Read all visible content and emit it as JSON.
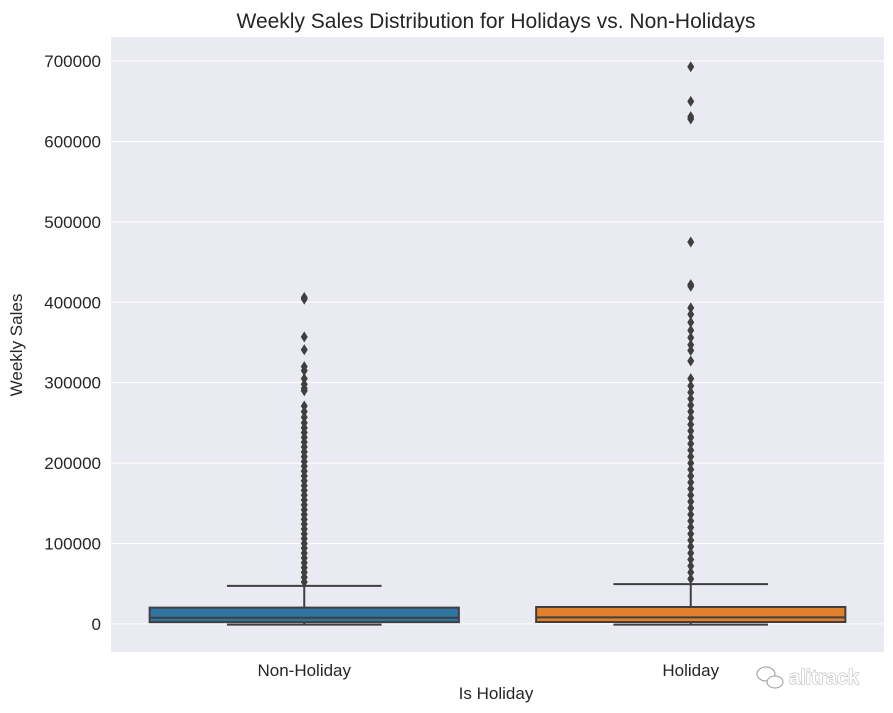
{
  "chart_data": {
    "type": "box",
    "title": "Weekly Sales Distribution for Holidays vs. Non-Holidays",
    "xlabel": "Is Holiday",
    "ylabel": "Weekly Sales",
    "categories": [
      "Non-Holiday",
      "Holiday"
    ],
    "ylim": [
      -35000,
      730000
    ],
    "yticks": [
      0,
      100000,
      200000,
      300000,
      400000,
      500000,
      600000,
      700000
    ],
    "ytick_labels": [
      "0",
      "100000",
      "200000",
      "300000",
      "400000",
      "500000",
      "600000",
      "700000"
    ],
    "grid": true,
    "boxes": [
      {
        "category": "Non-Holiday",
        "color": "#3274a1",
        "whisker_low": -1000,
        "q1": 2100,
        "median": 7600,
        "q3": 20200,
        "whisker_high": 47300,
        "outliers": [
          406000,
          404000,
          357000,
          341000,
          320000,
          315000,
          305000,
          298000,
          293000,
          290000,
          271000,
          264000,
          257000,
          250000,
          244000,
          238000,
          232000,
          226000,
          220000,
          214000,
          208000,
          202000,
          196000,
          190000,
          184000,
          178000,
          172000,
          166000,
          160000,
          154000,
          148000,
          142000,
          136000,
          130000,
          124000,
          118000,
          112000,
          106000,
          100000,
          94000,
          88000,
          82000,
          76000,
          70000,
          64000,
          58000,
          52000
        ]
      },
      {
        "category": "Holiday",
        "color": "#e1812c",
        "whisker_low": -1000,
        "q1": 2300,
        "median": 8000,
        "q3": 21000,
        "whisker_high": 49500,
        "outliers": [
          693000,
          650000,
          631000,
          628000,
          475000,
          422000,
          420000,
          393000,
          385000,
          375000,
          365000,
          356000,
          347000,
          340000,
          327000,
          305000,
          296000,
          288000,
          280000,
          272000,
          264000,
          256000,
          248000,
          240000,
          232000,
          224000,
          216000,
          208000,
          200000,
          192000,
          184000,
          176000,
          168000,
          160000,
          152000,
          144000,
          136000,
          128000,
          120000,
          112000,
          104000,
          96000,
          88000,
          80000,
          72000,
          64000,
          56000
        ]
      }
    ]
  },
  "watermark": {
    "text": "alitrack",
    "icon": "wechat-icon"
  },
  "colors": {
    "plot_bg": "#eaeaf2",
    "grid": "#ffffff",
    "edge": "#3f3f3f"
  }
}
